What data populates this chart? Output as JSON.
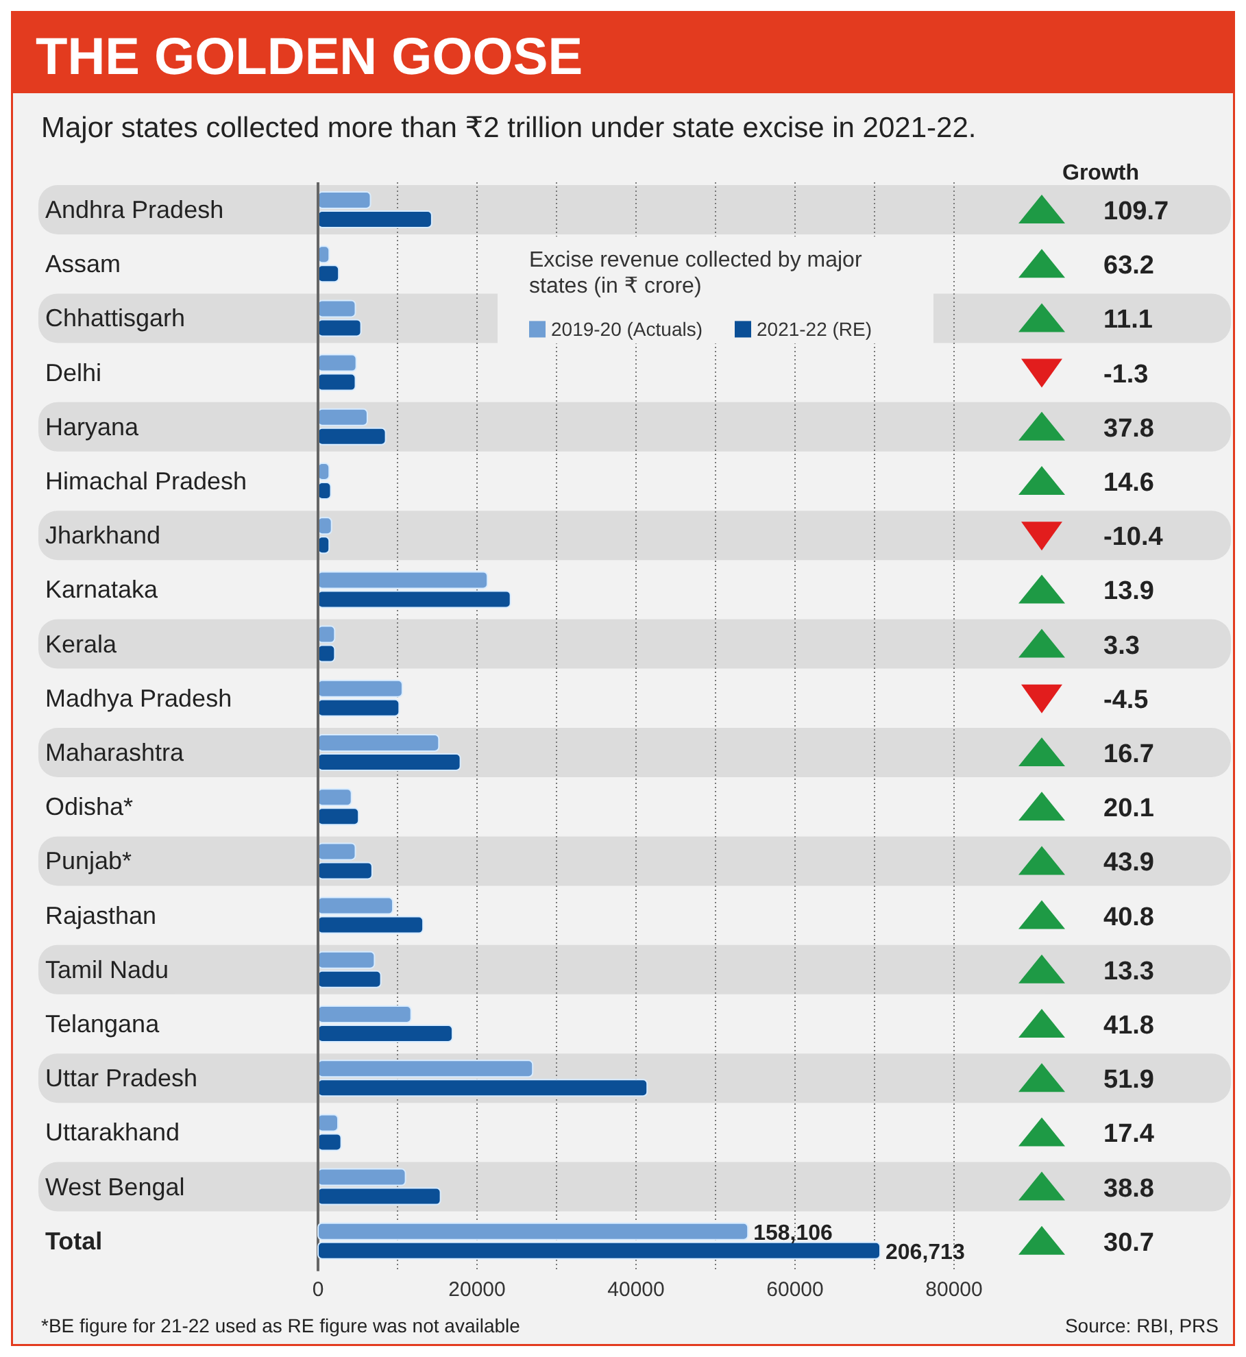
{
  "chart_data": [
    {
      "type": "bar",
      "orientation": "horizontal",
      "title": "THE GOLDEN GOOSE",
      "subtitle": "Major states collected more than ₹2 trillion under state excise in 2021-22.",
      "legend_title": "Excise revenue collected by major states (in ₹ crore)",
      "legend": "top right",
      "grid": "x",
      "categories": [
        "Andhra Pradesh",
        "Assam",
        "Chhattisgarh",
        "Delhi",
        "Haryana",
        "Himachal Pradesh",
        "Jharkhand",
        "Karnataka",
        "Kerala",
        "Madhya Pradesh",
        "Maharashtra",
        "Odisha*",
        "Punjab*",
        "Rajasthan",
        "Tamil Nadu",
        "Telangana",
        "Uttar Pradesh",
        "Uttarakhand",
        "West Bengal"
      ],
      "series": [
        {
          "name": "2019-20 (Actuals)",
          "color": "#6f9ed4",
          "values": [
            6600,
            1400,
            4700,
            4800,
            6200,
            1400,
            1700,
            21300,
            2100,
            10600,
            15200,
            4200,
            4700,
            9400,
            7100,
            11700,
            27000,
            2500,
            11000
          ]
        },
        {
          "name": "2021-22 (RE)",
          "color": "#0b4f96",
          "values": [
            14300,
            2600,
            5400,
            4700,
            8500,
            1600,
            1400,
            24200,
            2100,
            10200,
            17900,
            5100,
            6800,
            13200,
            7900,
            16900,
            41400,
            2900,
            15400
          ]
        }
      ],
      "xlim": [
        0,
        80000
      ],
      "xticks": [
        0,
        {
          "value": 10000,
          "label": null
        },
        20000,
        {
          "value": 30000,
          "label": null
        },
        40000,
        {
          "value": 50000,
          "label": null
        },
        60000,
        {
          "value": 70000,
          "label": null
        },
        80000
      ],
      "annotations": [
        "*BE figure for 21-22 used as RE figure was not available",
        "Source: RBI, PRS"
      ]
    },
    {
      "type": "bar",
      "orientation": "horizontal",
      "categories": [
        "Total"
      ],
      "series": [
        {
          "color": "#6f9ed4",
          "values": [
            158106
          ],
          "value_labels": [
            "158,106"
          ]
        },
        {
          "color": "#0b4f96",
          "values": [
            206713
          ],
          "value_labels": [
            "206,713"
          ]
        }
      ]
    },
    {
      "type": "other",
      "title": "Growth",
      "data_labels": true,
      "categories": [
        null,
        null,
        null,
        null,
        null,
        null,
        null,
        null,
        null,
        null,
        null,
        null,
        null,
        null,
        null,
        null,
        null,
        null,
        null,
        null
      ],
      "values": [
        109.7,
        63.2,
        11.1,
        -1.3,
        37.8,
        14.6,
        -10.4,
        13.9,
        3.3,
        -4.5,
        16.7,
        20.1,
        43.9,
        40.8,
        13.3,
        41.8,
        51.9,
        17.4,
        38.8,
        30.7
      ]
    }
  ]
}
